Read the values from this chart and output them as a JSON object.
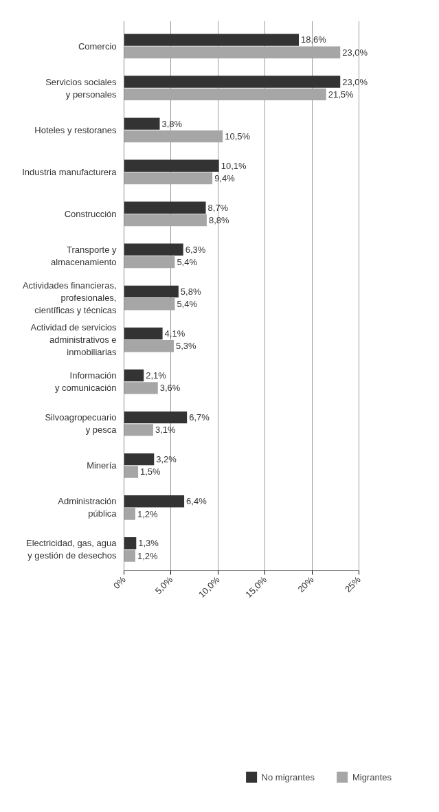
{
  "chart_data": {
    "type": "bar",
    "orientation": "horizontal",
    "categories": [
      "Comercio",
      "Servicios sociales\ny personales",
      "Hoteles y restoranes",
      "Industria manufacturera",
      "Construcción",
      "Transporte y\nalmacenamiento",
      "Actividades financieras,\nprofesionales,\ncientíficas y técnicas",
      "Actividad de servicios\nadministrativos e\ninmobiliarias",
      "Información\ny comunicación",
      "Silvoagropecuario\ny pesca",
      "Minería",
      "Administración\npública",
      "Electricidad, gas, agua\ny gestión de desechos"
    ],
    "series": [
      {
        "name": "No migrantes",
        "color": "#333333",
        "values": [
          18.6,
          23.0,
          3.8,
          10.1,
          8.7,
          6.3,
          5.8,
          4.1,
          2.1,
          6.7,
          3.2,
          6.4,
          1.3
        ],
        "value_labels": [
          "18,6%",
          "23,0%",
          "3,8%",
          "10,1%",
          "8,7%",
          "6,3%",
          "5,8%",
          "4,1%",
          "2,1%",
          "6,7%",
          "3,2%",
          "6,4%",
          "1,3%"
        ]
      },
      {
        "name": "Migrantes",
        "color": "#a6a6a6",
        "values": [
          23.0,
          21.5,
          10.5,
          9.4,
          8.8,
          5.4,
          5.4,
          5.3,
          3.6,
          3.1,
          1.5,
          1.2,
          1.2
        ],
        "value_labels": [
          "23,0%",
          "21,5%",
          "10,5%",
          "9,4%",
          "8,8%",
          "5,4%",
          "5,4%",
          "5,3%",
          "3,6%",
          "3,1%",
          "1,5%",
          "1,2%",
          "1,2%"
        ]
      }
    ],
    "xlim": [
      0,
      25
    ],
    "xticks": [
      {
        "value": 0,
        "label": "0%"
      },
      {
        "value": 5,
        "label": "5,0%"
      },
      {
        "value": 10,
        "label": "10,0%"
      },
      {
        "value": 15,
        "label": "15,0%"
      },
      {
        "value": 20,
        "label": "20%"
      },
      {
        "value": 25,
        "label": "25%"
      }
    ],
    "grid": "x",
    "legend": "bottom"
  }
}
